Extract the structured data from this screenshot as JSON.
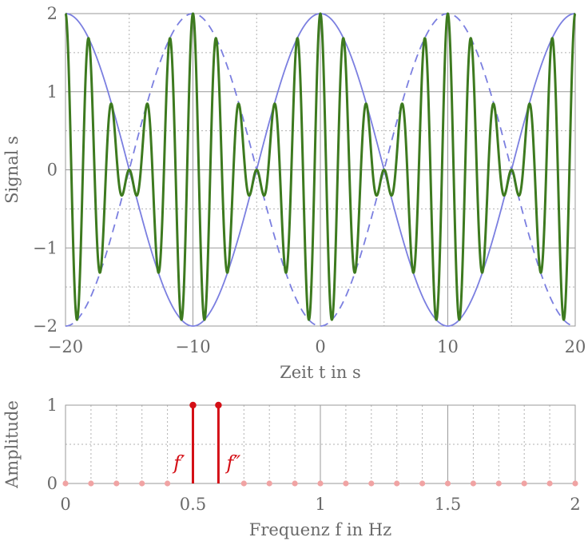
{
  "chart_data": [
    {
      "type": "line",
      "xlabel": "Zeit t in s",
      "ylabel": "Signal s",
      "xlim": [
        -20,
        20
      ],
      "ylim": [
        -2,
        2
      ],
      "x_ticks": [
        "−20",
        "−10",
        "0",
        "10",
        "20"
      ],
      "y_ticks": [
        "2",
        "1",
        "0",
        "−1",
        "−2"
      ],
      "grid": true,
      "series": [
        {
          "kind": "sum",
          "formula": "cos(2π·0.5·t) + cos(2π·0.6·t)",
          "color": "#3d7a1f",
          "style": "solid"
        },
        {
          "kind": "envelope-upper",
          "formula": "2·cos(2π·0.05·t)",
          "color": "#7b7fe0",
          "style": "solid"
        },
        {
          "kind": "envelope-lower",
          "formula": "−2·cos(2π·0.05·t)",
          "color": "#7b7fe0",
          "style": "dashed"
        }
      ],
      "x_range_samples": {
        "from": -20,
        "to": 20
      }
    },
    {
      "type": "stem",
      "xlabel": "Frequenz f in Hz",
      "ylabel": "Amplitude",
      "xlim": [
        0,
        2
      ],
      "ylim": [
        0,
        1
      ],
      "x_ticks": [
        "0",
        "0.5",
        "1",
        "1.5",
        "2"
      ],
      "y_ticks": [
        "1",
        "0"
      ],
      "grid": true,
      "x_step": 0.1,
      "peaks": [
        {
          "x": 0.5,
          "value": 1,
          "label": "f′"
        },
        {
          "x": 0.6,
          "value": 1,
          "label": "f″"
        }
      ],
      "colors": {
        "peak": "#d40f16",
        "baseline_dots": "#f0a3a3",
        "axis": "#9a9a9a"
      }
    }
  ]
}
